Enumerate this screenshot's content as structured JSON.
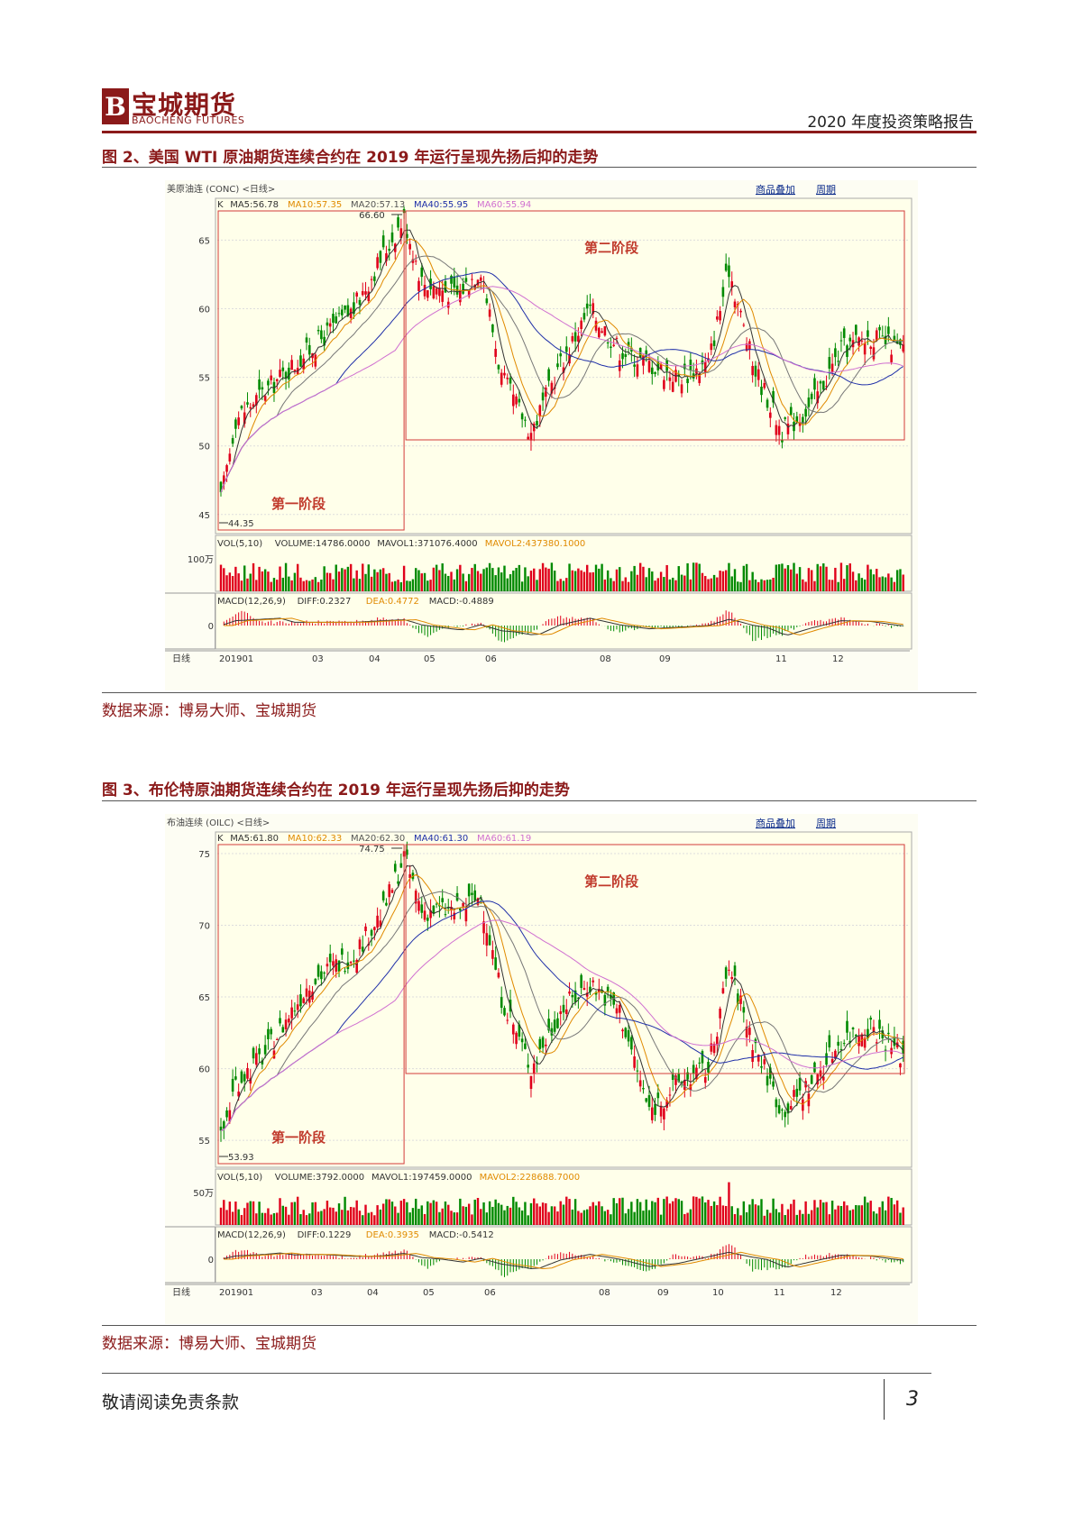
{
  "header": {
    "logo_cn": "宝城期货",
    "logo_en": "BAOCHENG FUTURES",
    "report_title": "2020 年度投资策略报告"
  },
  "figures": [
    {
      "title": "图 2、美国 WTI 原油期货连续合约在 2019 年运行呈现先扬后抑的走势",
      "panel_title": "美原油连 (CONC) <日线>",
      "link1": "商品叠加",
      "link2": "周期",
      "legend": [
        {
          "text": "K",
          "color": "#333333"
        },
        {
          "text": "MA5:56.78",
          "color": "#333333"
        },
        {
          "text": "MA10:57.35",
          "color": "#e08a00"
        },
        {
          "text": "MA20:57.13",
          "color": "#555555"
        },
        {
          "text": "MA40:55.95",
          "color": "#1f2fa8"
        },
        {
          "text": "MA60:55.94",
          "color": "#d070d0"
        }
      ],
      "high_label": "66.60",
      "low_label": "44.35",
      "stage1": "第一阶段",
      "stage2": "第二阶段",
      "vol_legend": [
        {
          "text": "VOL(5,10)",
          "color": "#333333"
        },
        {
          "text": "VOLUME:14786.0000",
          "color": "#333333"
        },
        {
          "text": "MAVOL1:371076.4000",
          "color": "#333333"
        },
        {
          "text": "MAVOL2:437380.1000",
          "color": "#e08a00"
        }
      ],
      "vol_axis": "100万",
      "macd_legend": [
        {
          "text": "MACD(12,26,9)",
          "color": "#333333"
        },
        {
          "text": "DIFF:0.2327",
          "color": "#333333"
        },
        {
          "text": "DEA:0.4772",
          "color": "#e08a00"
        },
        {
          "text": "MACD:-0.4889",
          "color": "#333333"
        }
      ],
      "macd_axis": "0",
      "x_labels": [
        "日线",
        "201901",
        "03",
        "04",
        "05",
        "06",
        "08",
        "09",
        "11",
        "12"
      ],
      "source": "数据来源：博易大师、宝城期货",
      "chart_data": {
        "type": "candlestick",
        "ylim": [
          44,
          67
        ],
        "yticks": [
          45,
          50,
          55,
          60,
          65
        ],
        "months": [
          "201901",
          "03",
          "04",
          "05",
          "06",
          "08",
          "09",
          "11",
          "12"
        ],
        "approx_close_path": [
          [
            0,
            46
          ],
          [
            5,
            52
          ],
          [
            15,
            54
          ],
          [
            30,
            57
          ],
          [
            45,
            60
          ],
          [
            55,
            64
          ],
          [
            62,
            66.6
          ],
          [
            68,
            62
          ],
          [
            80,
            61
          ],
          [
            88,
            63
          ],
          [
            95,
            55
          ],
          [
            105,
            51
          ],
          [
            115,
            56
          ],
          [
            125,
            60
          ],
          [
            135,
            57
          ],
          [
            145,
            56
          ],
          [
            155,
            55
          ],
          [
            165,
            56
          ],
          [
            172,
            63
          ],
          [
            180,
            56
          ],
          [
            190,
            51
          ],
          [
            200,
            53
          ],
          [
            210,
            57
          ],
          [
            220,
            58
          ],
          [
            230,
            57
          ]
        ],
        "high": 66.6,
        "low": 44.35,
        "stage_split_index": 62
      }
    },
    {
      "title": "图 3、布伦特原油期货连续合约在 2019 年运行呈现先扬后抑的走势",
      "panel_title": "布油连续 (OILC) <日线>",
      "link1": "商品叠加",
      "link2": "周期",
      "legend": [
        {
          "text": "K",
          "color": "#333333"
        },
        {
          "text": "MA5:61.80",
          "color": "#333333"
        },
        {
          "text": "MA10:62.33",
          "color": "#e08a00"
        },
        {
          "text": "MA20:62.30",
          "color": "#555555"
        },
        {
          "text": "MA40:61.30",
          "color": "#1f2fa8"
        },
        {
          "text": "MA60:61.19",
          "color": "#d070d0"
        }
      ],
      "high_label": "74.75",
      "low_label": "53.93",
      "stage1": "第一阶段",
      "stage2": "第二阶段",
      "vol_legend": [
        {
          "text": "VOL(5,10)",
          "color": "#333333"
        },
        {
          "text": "VOLUME:3792.0000",
          "color": "#333333"
        },
        {
          "text": "MAVOL1:197459.0000",
          "color": "#333333"
        },
        {
          "text": "MAVOL2:228688.7000",
          "color": "#e08a00"
        }
      ],
      "vol_axis": "50万",
      "macd_legend": [
        {
          "text": "MACD(12,26,9)",
          "color": "#333333"
        },
        {
          "text": "DIFF:0.1229",
          "color": "#333333"
        },
        {
          "text": "DEA:0.3935",
          "color": "#e08a00"
        },
        {
          "text": "MACD:-0.5412",
          "color": "#333333"
        }
      ],
      "macd_axis": "0",
      "x_labels": [
        "日线",
        "201901",
        "03",
        "04",
        "05",
        "06",
        "08",
        "09",
        "10",
        "11",
        "12"
      ],
      "source": "数据来源：博易大师、宝城期货",
      "chart_data": {
        "type": "candlestick",
        "ylim": [
          53.5,
          75.5
        ],
        "yticks": [
          55,
          60,
          65,
          70,
          75
        ],
        "months": [
          "201901",
          "03",
          "04",
          "05",
          "06",
          "08",
          "09",
          "10",
          "11",
          "12"
        ],
        "approx_close_path": [
          [
            0,
            55
          ],
          [
            5,
            59
          ],
          [
            15,
            61
          ],
          [
            30,
            66
          ],
          [
            45,
            68
          ],
          [
            55,
            71
          ],
          [
            62,
            74.75
          ],
          [
            68,
            71
          ],
          [
            80,
            71
          ],
          [
            88,
            72
          ],
          [
            95,
            65
          ],
          [
            105,
            60
          ],
          [
            115,
            64
          ],
          [
            125,
            66
          ],
          [
            135,
            64
          ],
          [
            145,
            57
          ],
          [
            155,
            59
          ],
          [
            165,
            60
          ],
          [
            172,
            67
          ],
          [
            180,
            62
          ],
          [
            190,
            57
          ],
          [
            200,
            59
          ],
          [
            210,
            62
          ],
          [
            220,
            63
          ],
          [
            230,
            61
          ]
        ],
        "high": 74.75,
        "low": 53.93,
        "stage_split_index": 62
      }
    }
  ],
  "footer": {
    "text": "敬请阅读免责条款",
    "page": "3"
  },
  "colors": {
    "brand": "#8b1a1a",
    "up": "#e0001b",
    "down": "#008a00",
    "stage_box": "#d33b3b"
  }
}
